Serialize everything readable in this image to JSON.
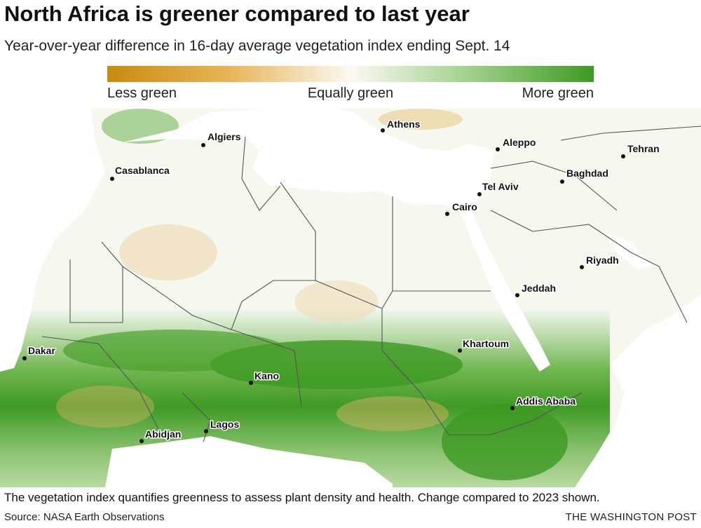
{
  "title": "North Africa is greener compared to last year",
  "subtitle": "Year-over-year difference in 16-day average vegetation index ending Sept. 14",
  "legend": {
    "left": "Less green",
    "middle": "Equally green",
    "right": "More green"
  },
  "cities": [
    "Algiers",
    "Casablanca",
    "Athens",
    "Aleppo",
    "Tehran",
    "Baghdad",
    "Tel Aviv",
    "Cairo",
    "Riyadh",
    "Jeddah",
    "Khartoum",
    "Dakar",
    "Kano",
    "Addis Ababa",
    "Lagos",
    "Abidjan"
  ],
  "footnote": "The vegetation index quantifies greenness to assess plant density and health. Change compared to 2023 shown.",
  "source": "Source: NASA Earth Observations",
  "credit": "THE WASHINGTON POST"
}
